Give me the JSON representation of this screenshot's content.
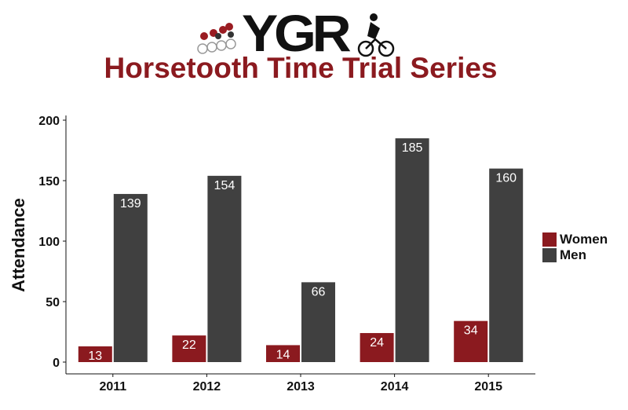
{
  "header": {
    "logo_text": "YGR",
    "title": "Horsetooth Time Trial Series"
  },
  "colors": {
    "title": "#8b1a1f",
    "women": "#8b1a1f",
    "men": "#404040"
  },
  "chart_data": {
    "type": "bar",
    "title": "Horsetooth Time Trial Series",
    "xlabel": "",
    "ylabel": "Attendance",
    "ylim": [
      0,
      200
    ],
    "yticks": [
      0,
      50,
      100,
      150,
      200
    ],
    "categories": [
      "2011",
      "2012",
      "2013",
      "2014",
      "2015"
    ],
    "series": [
      {
        "name": "Women",
        "values": [
          13,
          22,
          14,
          24,
          34
        ]
      },
      {
        "name": "Men",
        "values": [
          139,
          154,
          66,
          185,
          160
        ]
      }
    ],
    "grid": false,
    "legend": "right"
  }
}
